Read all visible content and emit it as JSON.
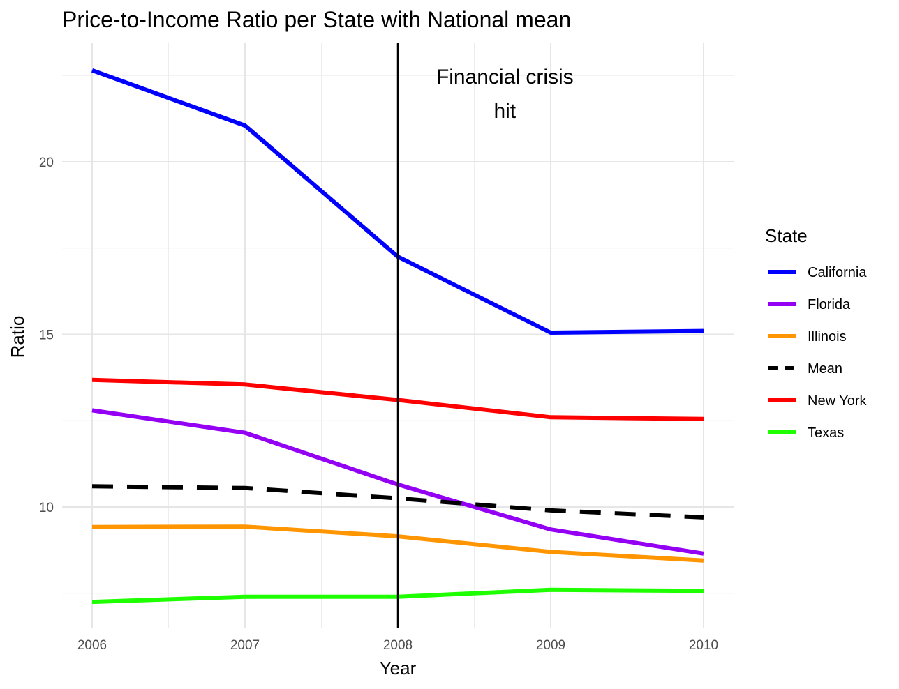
{
  "chart_data": {
    "type": "line",
    "title": "Price-to-Income Ratio per State with National mean",
    "xlabel": "Year",
    "ylabel": "Ratio",
    "x": [
      2006,
      2007,
      2008,
      2009,
      2010
    ],
    "x_tick_labels": [
      "2006",
      "2007",
      "2008",
      "2009",
      "2010"
    ],
    "xlim": [
      2006,
      2010
    ],
    "ylim": [
      6.5,
      23.5
    ],
    "y_ticks": [
      10,
      15,
      20
    ],
    "y_tick_labels": [
      "10",
      "15",
      "20"
    ],
    "grid": true,
    "legend": {
      "title": "State",
      "placement": "right"
    },
    "series": [
      {
        "name": "California",
        "color": "#0000FF",
        "dash": "solid",
        "values": [
          22.65,
          21.05,
          17.25,
          15.05,
          15.1
        ]
      },
      {
        "name": "Florida",
        "color": "#9400F3",
        "dash": "solid",
        "values": [
          12.8,
          12.15,
          10.65,
          9.35,
          8.65
        ]
      },
      {
        "name": "Illinois",
        "color": "#FF9500",
        "dash": "solid",
        "values": [
          9.42,
          9.43,
          9.15,
          8.7,
          8.45
        ]
      },
      {
        "name": "Mean",
        "color": "#000000",
        "dash": "dashed",
        "values": [
          10.6,
          10.55,
          10.25,
          9.9,
          9.7
        ]
      },
      {
        "name": "New York",
        "color": "#FF0000",
        "dash": "solid",
        "values": [
          13.68,
          13.55,
          13.1,
          12.6,
          12.55
        ]
      },
      {
        "name": "Texas",
        "color": "#1EFF00",
        "dash": "solid",
        "values": [
          7.25,
          7.4,
          7.4,
          7.6,
          7.57
        ]
      }
    ],
    "annotations": [
      {
        "type": "vline",
        "x": 2008,
        "color": "#000000"
      },
      {
        "type": "text",
        "x": 2008.7,
        "lines": [
          "Financial crisis",
          "hit"
        ]
      }
    ]
  }
}
